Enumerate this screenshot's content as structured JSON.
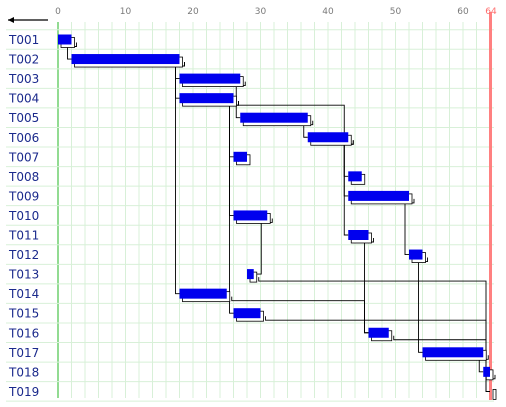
{
  "colors": {
    "grid": "#d8f0d8",
    "zero_line": "#6ecf6e",
    "end_line": "#ff8080",
    "bar": "#0000ee",
    "bar_shadow": "#ffffff",
    "link": "#000000",
    "label": "#1b2a8c",
    "tick": "#7a7a7a"
  },
  "chart_data": {
    "type": "gantt",
    "title": "",
    "x_ticks": [
      0,
      10,
      20,
      30,
      40,
      50,
      60
    ],
    "x_range": [
      0,
      64
    ],
    "end_marker": {
      "value": 64,
      "label": "64"
    },
    "header_icon": "left-arrow-icon",
    "tasks": [
      {
        "id": "T001",
        "start": 0,
        "end": 2
      },
      {
        "id": "T002",
        "start": 2,
        "end": 18
      },
      {
        "id": "T003",
        "start": 18,
        "end": 27
      },
      {
        "id": "T004",
        "start": 18,
        "end": 26
      },
      {
        "id": "T005",
        "start": 27,
        "end": 37
      },
      {
        "id": "T006",
        "start": 37,
        "end": 43
      },
      {
        "id": "T007",
        "start": 26,
        "end": 28
      },
      {
        "id": "T008",
        "start": 43,
        "end": 45
      },
      {
        "id": "T009",
        "start": 43,
        "end": 52
      },
      {
        "id": "T010",
        "start": 26,
        "end": 31
      },
      {
        "id": "T011",
        "start": 43,
        "end": 46
      },
      {
        "id": "T012",
        "start": 52,
        "end": 54
      },
      {
        "id": "T013",
        "start": 28,
        "end": 29
      },
      {
        "id": "T014",
        "start": 18,
        "end": 25
      },
      {
        "id": "T015",
        "start": 26,
        "end": 30
      },
      {
        "id": "T016",
        "start": 46,
        "end": 49
      },
      {
        "id": "T017",
        "start": 54,
        "end": 63
      },
      {
        "id": "T018",
        "start": 63,
        "end": 64
      },
      {
        "id": "T019",
        "start": 64,
        "end": 64
      }
    ],
    "links": [
      [
        "T001",
        "T002"
      ],
      [
        "T002",
        "T003"
      ],
      [
        "T002",
        "T004"
      ],
      [
        "T002",
        "T014"
      ],
      [
        "T003",
        "T005"
      ],
      [
        "T004",
        "T007"
      ],
      [
        "T004",
        "T010"
      ],
      [
        "T004",
        "T015"
      ],
      [
        "T004",
        "T009"
      ],
      [
        "T005",
        "T006"
      ],
      [
        "T006",
        "T008"
      ],
      [
        "T006",
        "T011"
      ],
      [
        "T009",
        "T012"
      ],
      [
        "T010",
        "T013"
      ],
      [
        "T011",
        "T016"
      ],
      [
        "T012",
        "T017"
      ],
      [
        "T017",
        "T018"
      ],
      [
        "T014",
        "T016"
      ],
      [
        "T015",
        "T019"
      ],
      [
        "T016",
        "T019"
      ],
      [
        "T013",
        "T019"
      ],
      [
        "T018",
        "T019"
      ]
    ]
  }
}
